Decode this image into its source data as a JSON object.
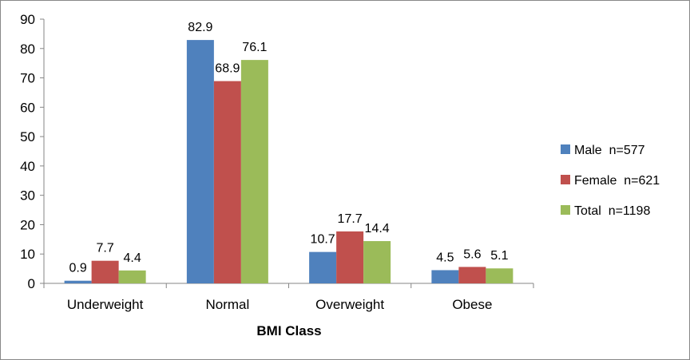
{
  "chart_data": {
    "type": "bar",
    "categories": [
      "Underweight",
      "Normal",
      "Overweight",
      "Obese"
    ],
    "series": [
      {
        "name": "Male  n=577",
        "values": [
          0.9,
          82.9,
          10.7,
          4.5
        ],
        "color": "#4F81BD"
      },
      {
        "name": "Female  n=621",
        "values": [
          7.7,
          68.9,
          17.7,
          5.6
        ],
        "color": "#C0504D"
      },
      {
        "name": "Total  n=1198",
        "values": [
          4.4,
          76.1,
          14.4,
          5.1
        ],
        "color": "#9BBB59"
      }
    ],
    "xlabel": "BMI Class",
    "ylabel": "",
    "ylim": [
      0,
      90
    ],
    "yticks": [
      0,
      10,
      20,
      30,
      40,
      50,
      60,
      70,
      80,
      90
    ],
    "grid": false,
    "legend_position": "right",
    "data_labels": true
  }
}
